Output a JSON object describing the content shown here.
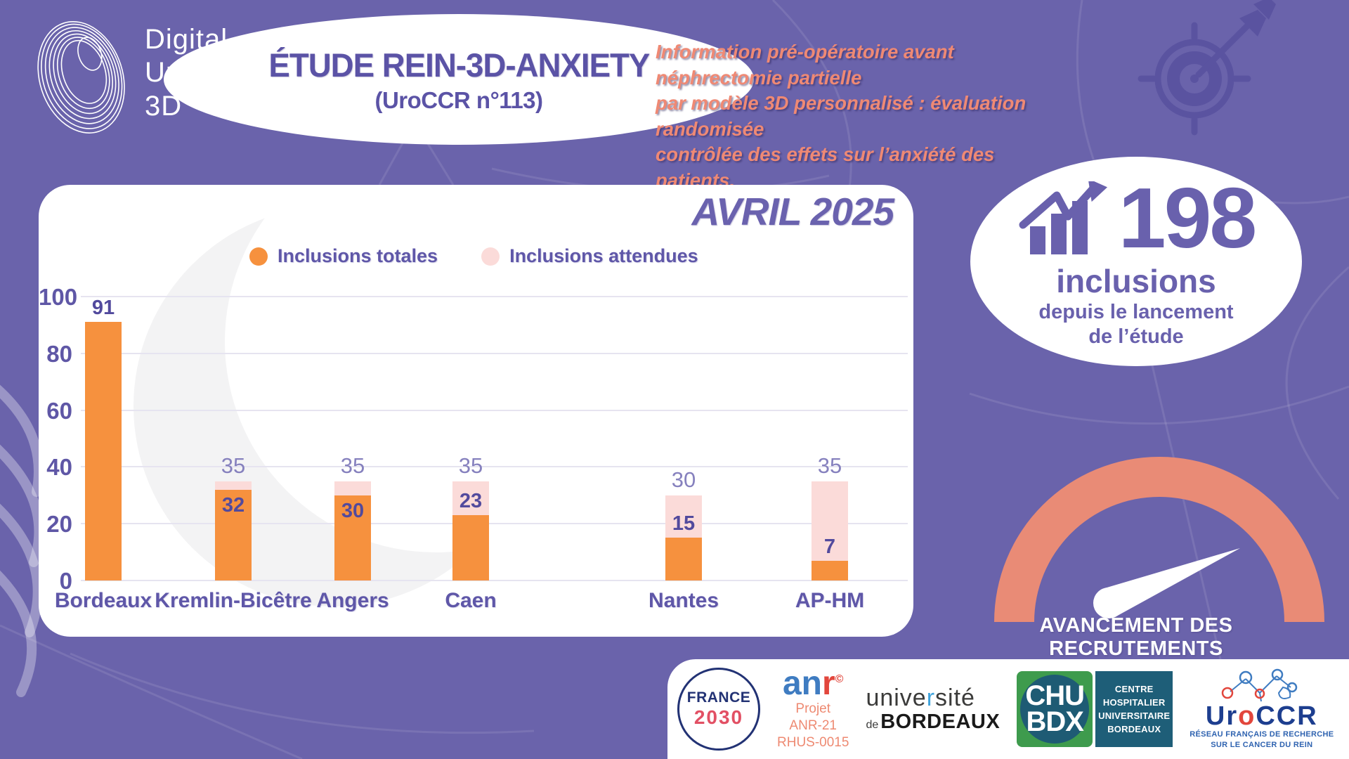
{
  "brand": {
    "line1": "Digital",
    "line2": "Urology",
    "line3": "3D"
  },
  "header": {
    "title": "ÉTUDE REIN-3D-ANXIETY",
    "subtitle": "(UroCCR n°113)",
    "description_lines": [
      "Information pré-opératoire avant néphrectomie partielle",
      "par modèle 3D personnalisé : évaluation randomisée",
      "contrôlée des effets sur l’anxiété des patients."
    ]
  },
  "chart_panel": {
    "month_title": "AVRIL 2025",
    "legend": [
      {
        "label": "Inclusions totales",
        "color": "#F6913E"
      },
      {
        "label": "Inclusions attendues",
        "color": "#FBDBD9"
      }
    ]
  },
  "chart_data": {
    "type": "bar",
    "title": "AVRIL 2025",
    "categories": [
      "Bordeaux",
      "Kremlin-Bicêtre",
      "Angers",
      "Caen",
      "Nantes",
      "AP-HM"
    ],
    "series": [
      {
        "name": "Inclusions totales",
        "values": [
          91,
          32,
          30,
          23,
          15,
          7
        ],
        "color": "#F6913E"
      },
      {
        "name": "Inclusions attendues",
        "values": [
          null,
          35,
          35,
          35,
          30,
          35
        ],
        "color": "#FBDBD9"
      }
    ],
    "ylim": [
      0,
      100
    ],
    "yticks": [
      0,
      20,
      40,
      60,
      80,
      100
    ],
    "grid": true,
    "legend_position": "top"
  },
  "stats": {
    "count": "198",
    "unit": "inclusions",
    "caption_line1": "depuis le lancement",
    "caption_line2": "de l’étude"
  },
  "gauge": {
    "label": "AVANCEMENT DES RECRUTEMENTS",
    "color": "#E98B76"
  },
  "footer": {
    "france2030": {
      "line1": "FRANCE",
      "line2": "2030"
    },
    "anr": {
      "name_blue": "an",
      "name_red": "r",
      "reg": "©",
      "lines": [
        "Projet",
        "ANR-21",
        "RHUS-0015"
      ]
    },
    "univ": {
      "part1": "unive",
      "part_r": "r",
      "part2": "sité",
      "de": "de",
      "city": "BORDEAUX"
    },
    "chu": {
      "abbr1": "CHU",
      "abbr2": "BDX",
      "lines": [
        "CENTRE",
        "HOSPITALIER",
        "UNIVERSITAIRE",
        "BORDEAUX"
      ]
    },
    "uroccr": {
      "part1": "Ur",
      "o": "o",
      "part2": "CCR",
      "lines": [
        "RÉSEAU FRANÇAIS DE RECHERCHE",
        "SUR LE CANCER DU REIN"
      ]
    }
  },
  "colors": {
    "background": "#6A63AB",
    "accent_orange": "#F6913E",
    "accent_pink": "#FBDBD9",
    "accent_coral": "#E98B76",
    "text_purple": "#5F57A8"
  }
}
